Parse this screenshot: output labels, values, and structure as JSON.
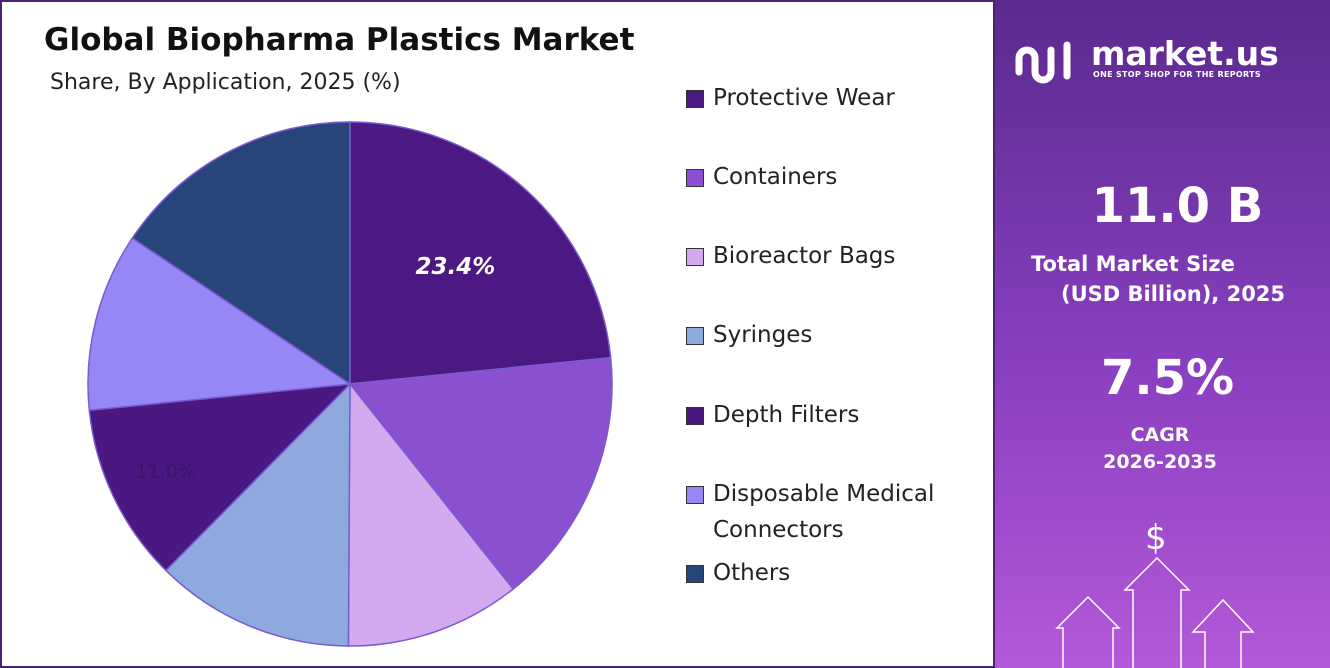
{
  "chart_data": {
    "type": "pie",
    "title": "Global Biopharma Plastics Market",
    "subtitle": "Share, By Application, 2025 (%)",
    "categories": [
      "Protective Wear",
      "Containers",
      "Bioreactor Bags",
      "Syringes",
      "Depth Filters",
      "Disposable Medical Connectors",
      "Others"
    ],
    "values": [
      23.4,
      15.9,
      10.8,
      12.3,
      11.0,
      11.0,
      15.6
    ],
    "value_labels": [
      "23.4%",
      null,
      null,
      null,
      "11.0%",
      null,
      null
    ],
    "colors": [
      "#4c1882",
      "#8b50d0",
      "#d3a9ef",
      "#8ea9dd",
      "#4b1780",
      "#9587f6",
      "#28457b"
    ]
  },
  "sidebar": {
    "brand": "market.us",
    "tagline": "ONE STOP SHOP FOR THE REPORTS",
    "market_size": "11.0 B",
    "market_size_label": [
      "Total Market Size",
      "(USD Billion), 2025"
    ],
    "cagr": "7.5%",
    "cagr_label": [
      "CAGR",
      "2026-2035"
    ],
    "icon": "$"
  }
}
